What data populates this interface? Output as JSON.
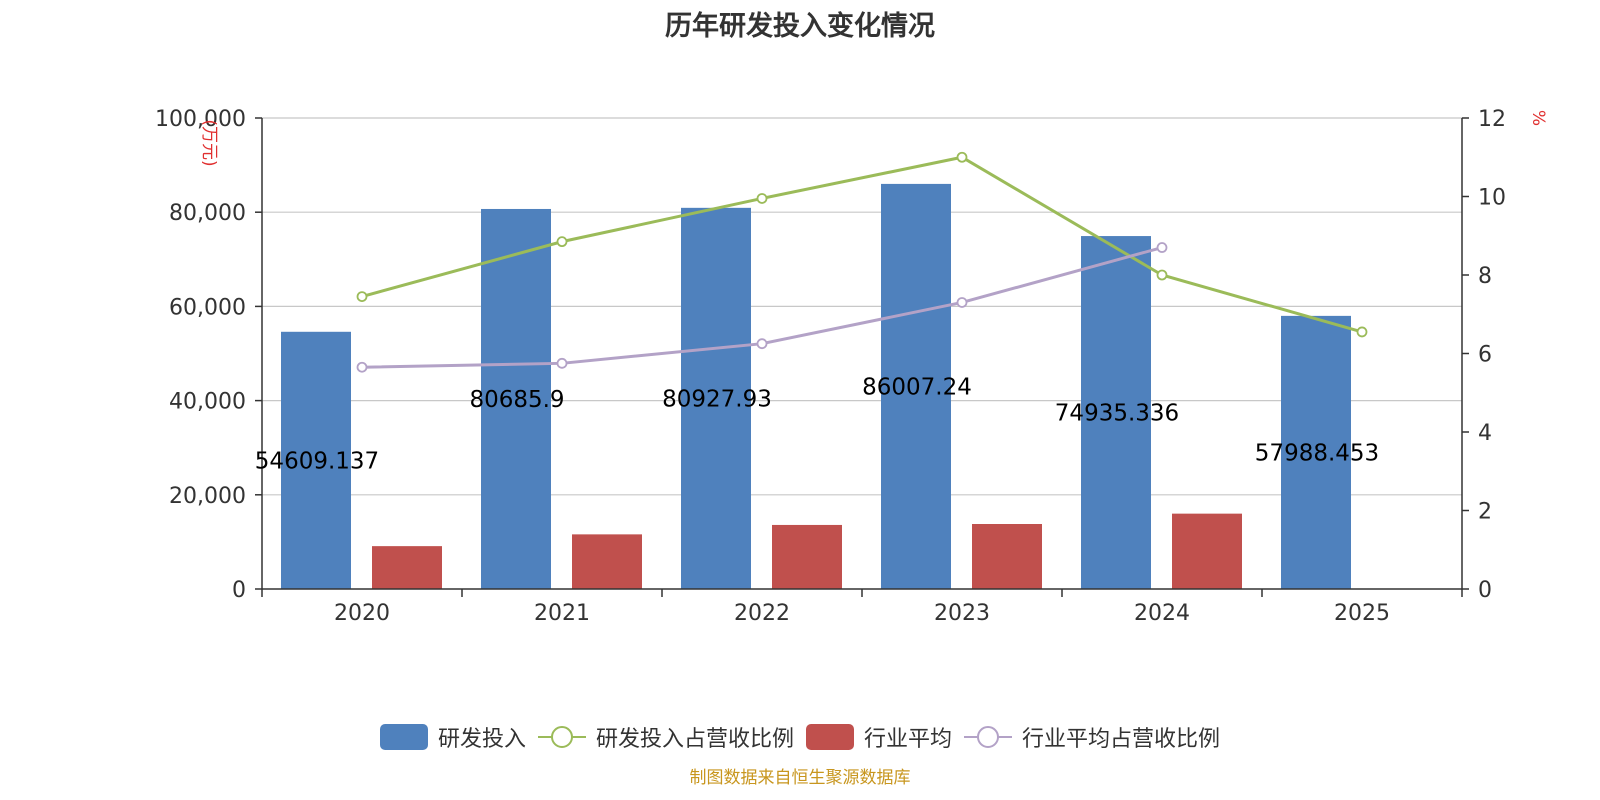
{
  "title": "历年研发投入变化情况",
  "source": "制图数据来自恒生聚源数据库",
  "colors": {
    "rd_bar": "#4f81bd",
    "industry_bar": "#c0504d",
    "rd_ratio_line": "#9bbb59",
    "industry_ratio_line": "#b3a2c7",
    "grid": "#c8c8c8",
    "axis": "#333333",
    "unit_text": "#e03030"
  },
  "chart_data": {
    "type": "bar",
    "title": "历年研发投入变化情况",
    "categories": [
      "2020",
      "2021",
      "2022",
      "2023",
      "2024",
      "2025"
    ],
    "y_left": {
      "unit": "(万元)",
      "ylim": [
        0,
        100000
      ],
      "ticks": [
        0,
        20000,
        40000,
        60000,
        80000,
        100000
      ],
      "tick_labels": [
        "0",
        "20,000",
        "40,000",
        "60,000",
        "80,000",
        "100,000"
      ]
    },
    "y_right": {
      "unit": "%",
      "ylim": [
        0,
        12
      ],
      "ticks": [
        0,
        2,
        4,
        6,
        8,
        10,
        12
      ],
      "tick_labels": [
        "0",
        "2",
        "4",
        "6",
        "8",
        "10",
        "12"
      ]
    },
    "grid": true,
    "legend_position": "bottom",
    "series": [
      {
        "name": "研发投入",
        "kind": "bar",
        "axis": "left",
        "color_key": "rd_bar",
        "values": [
          54609.137,
          80685.9,
          80927.93,
          86007.24,
          74935.336,
          57988.453
        ],
        "labels": [
          "54609.137",
          "80685.9",
          "80927.93",
          "86007.24",
          "74935.336",
          "57988.453"
        ]
      },
      {
        "name": "研发投入占营收比例",
        "kind": "line",
        "axis": "right",
        "color_key": "rd_ratio_line",
        "values": [
          7.45,
          8.85,
          9.95,
          11.0,
          8.0,
          6.55
        ]
      },
      {
        "name": "行业平均",
        "kind": "bar",
        "axis": "left",
        "color_key": "industry_bar",
        "values": [
          9100,
          11600,
          13600,
          13800,
          16000,
          null
        ]
      },
      {
        "name": "行业平均占营收比例",
        "kind": "line",
        "axis": "right",
        "color_key": "industry_ratio_line",
        "values": [
          5.65,
          5.75,
          6.25,
          7.3,
          8.7,
          null
        ]
      }
    ]
  }
}
